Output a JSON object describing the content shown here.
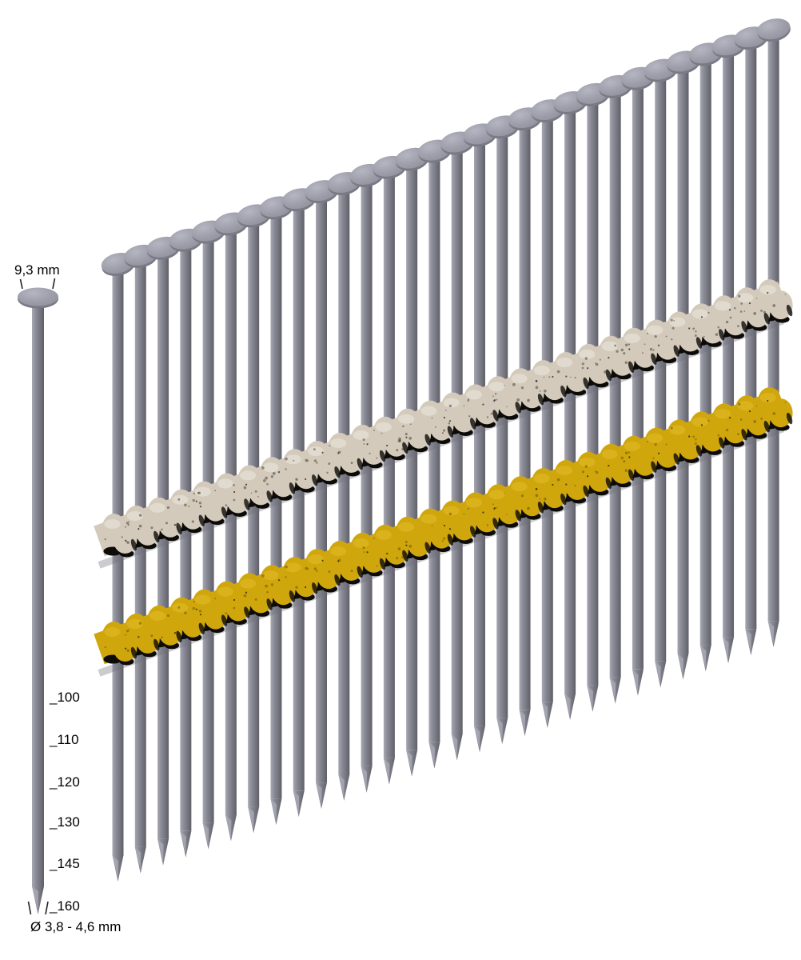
{
  "annotations": {
    "head_diameter": "9,3 mm",
    "shank_diameter": "Ø 3,8 - 4,6 mm",
    "lengths": [
      "_100",
      "_110",
      "_120",
      "_130",
      "_145",
      "_160"
    ]
  },
  "illustration": {
    "nail_count": 30,
    "collation_band_count": 2,
    "colors": {
      "background": "#ffffff",
      "nail_light": "#a7a8b3",
      "nail_mid2": "#8a8b96",
      "nail_mid": "#75757f",
      "nail_dark": "#5f5f68",
      "head_top": "#9e9eaa",
      "head_hi": "#b6b6c2",
      "head_edge": "#90909c",
      "head_rim": "#7a7a86",
      "band_beige": "#d3cabb",
      "band_beige_hi": "#ece7de",
      "band_beige_speckle": "#4a4436",
      "band_yellow": "#d0a60d",
      "band_yellow_hi": "#e2bc2a",
      "band_yellow_speckle": "#6e5604",
      "band_shadow": "#0c0b08",
      "annotation_line": "#222222"
    }
  }
}
